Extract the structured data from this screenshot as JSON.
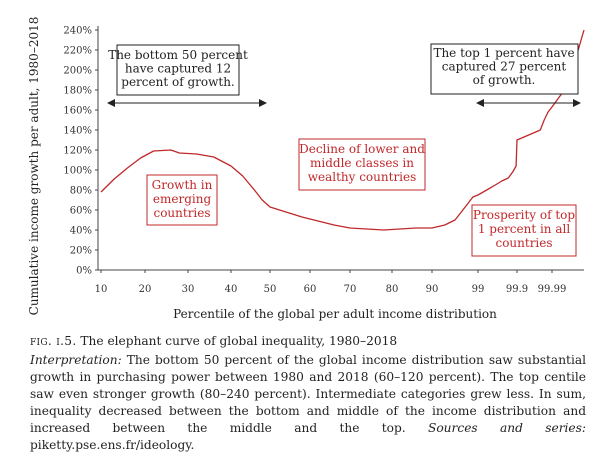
{
  "chart_data": {
    "type": "line",
    "ylabel": "Cumulative income growth per adult, 1980–2018",
    "xlabel": "Percentile of the global per adult income distribution",
    "ylim": [
      0,
      240
    ],
    "y_ticks": [
      "0%",
      "20%",
      "40%",
      "60%",
      "80%",
      "100%",
      "120%",
      "140%",
      "160%",
      "180%",
      "200%",
      "220%",
      "240%"
    ],
    "x_ticks": [
      "10",
      "20",
      "30",
      "40",
      "50",
      "60",
      "70",
      "80",
      "90",
      "99",
      "99.9",
      "99.99"
    ],
    "series": [
      {
        "color": "#c0282a",
        "points": [
          [
            10,
            78
          ],
          [
            13,
            91
          ],
          [
            16,
            102
          ],
          [
            19,
            112
          ],
          [
            22,
            119
          ],
          [
            26,
            120
          ],
          [
            28,
            117
          ],
          [
            32,
            116
          ],
          [
            36,
            113
          ],
          [
            40,
            104
          ],
          [
            43,
            94
          ],
          [
            46,
            80
          ],
          [
            48,
            70
          ],
          [
            50,
            63
          ],
          [
            54,
            58
          ],
          [
            58,
            53
          ],
          [
            62,
            49
          ],
          [
            66,
            45
          ],
          [
            70,
            42
          ],
          [
            74,
            41
          ],
          [
            78,
            40
          ],
          [
            82,
            41
          ],
          [
            86,
            42
          ],
          [
            90,
            42
          ],
          [
            92.5,
            45
          ],
          [
            94.5,
            50
          ],
          [
            96.5,
            63
          ],
          [
            98,
            73
          ],
          [
            99,
            75
          ],
          [
            99.2,
            80
          ],
          [
            99.4,
            85
          ],
          [
            99.55,
            89
          ],
          [
            99.7,
            92
          ],
          [
            99.8,
            98
          ],
          [
            99.88,
            104
          ],
          [
            99.9,
            130
          ],
          [
            99.93,
            135
          ],
          [
            99.96,
            140
          ],
          [
            99.97,
            150
          ],
          [
            99.98,
            158
          ],
          [
            99.99,
            163
          ],
          [
            99.995,
            185
          ],
          [
            100,
            240
          ]
        ]
      }
    ],
    "annotations": {
      "bottom50": "The bottom 50 percent\nhave captured 12\npercent of growth.",
      "top1": "The top 1 percent have\ncaptured 27 percent\nof growth.",
      "emerging": "Growth in\nemerging\ncountries",
      "decline": "Decline of lower and\nmiddle classes in\nwealthy countries",
      "prosperity": "Prosperity of top\n1 percent in all\ncountries"
    }
  },
  "caption": {
    "fig_label": "fig. i.5.",
    "fig_title": "The elephant curve of global inequality, 1980–2018",
    "interp_label": "Interpretation:",
    "interp_text": "The bottom 50 percent of the global income distribution saw substantial growth in purchasing power between 1980 and 2018 (60–120 percent). The top centile saw even stronger growth (80–240 percent). Intermediate categories grew less. In sum, inequality decreased between the bottom and middle of the income distribution and increased between the middle and the top.",
    "sources_label": "Sources and series:",
    "sources_text": "piketty.pse.ens.fr/ideology."
  }
}
